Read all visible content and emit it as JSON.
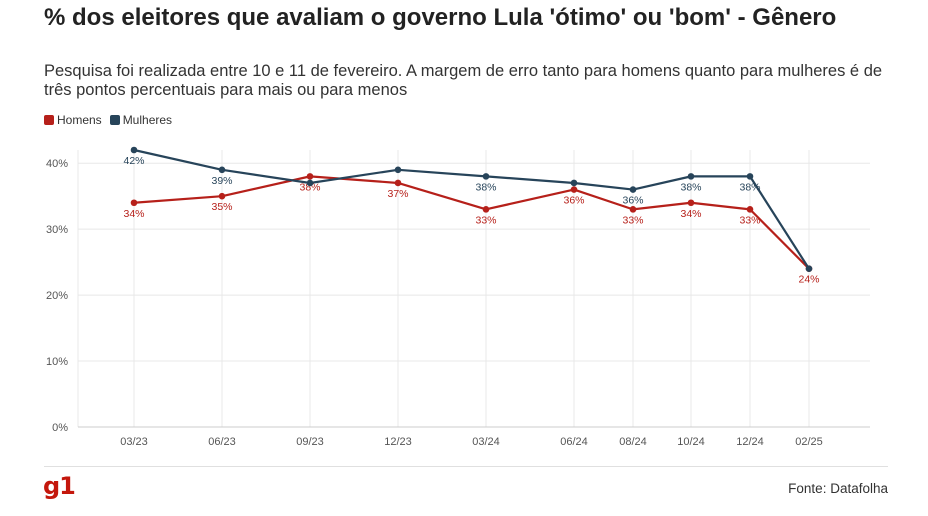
{
  "header": {
    "title": "% dos eleitores que avaliam o governo Lula 'ótimo' ou 'bom' - Gênero",
    "subtitle": "Pesquisa foi realizada entre 10 e 11 de fevereiro. A margem de erro tanto para homens quanto para mulheres é de três pontos percentuais para mais ou para menos"
  },
  "footer": {
    "logo": "g1",
    "source": "Fonte: Datafolha"
  },
  "colors": {
    "homens": "#b6201a",
    "mulheres": "#27445a",
    "grid": "#e8e8e8"
  },
  "chart_data": {
    "type": "line",
    "x": [
      "03/23",
      "06/23",
      "09/23",
      "12/23",
      "03/24",
      "06/24",
      "08/24",
      "10/24",
      "12/24",
      "02/25"
    ],
    "series": [
      {
        "name": "Homens",
        "color": "#b6201a",
        "values": [
          34,
          35,
          38,
          37,
          33,
          36,
          33,
          34,
          33,
          24
        ],
        "labels": [
          "34%",
          "35%",
          "38%",
          "37%",
          "33%",
          "36%",
          "33%",
          "34%",
          "33%",
          "24%"
        ]
      },
      {
        "name": "Mulheres",
        "color": "#27445a",
        "values": [
          42,
          39,
          37,
          39,
          38,
          37,
          36,
          38,
          38,
          24
        ],
        "labels": [
          "42%",
          "39%",
          "",
          "",
          "38%",
          "",
          "36%",
          "38%",
          "38%",
          ""
        ]
      }
    ],
    "yticks": [
      "0%",
      "10%",
      "20%",
      "30%",
      "40%"
    ],
    "yticks_values": [
      0,
      10,
      20,
      30,
      40
    ],
    "ylim": [
      0,
      42
    ],
    "grid": true,
    "legend_position": "top-left"
  }
}
